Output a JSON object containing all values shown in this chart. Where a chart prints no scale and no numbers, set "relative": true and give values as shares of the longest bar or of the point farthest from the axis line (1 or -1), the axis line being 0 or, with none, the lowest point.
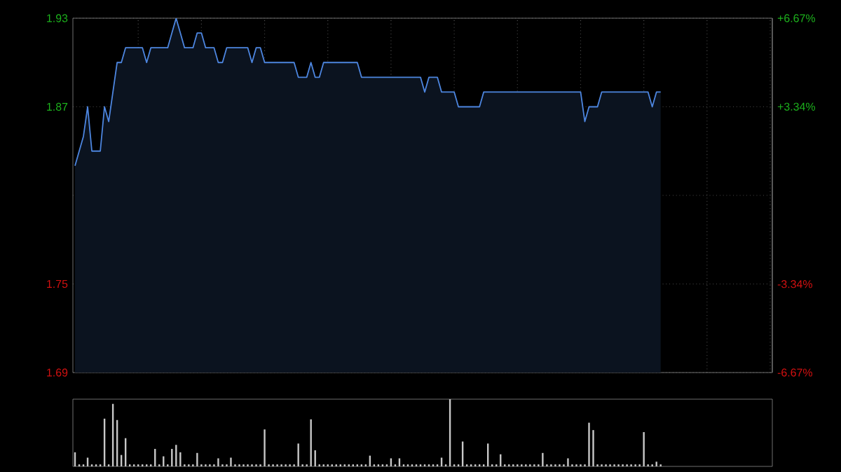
{
  "chart_data": [
    {
      "type": "area",
      "color": "#4d86e0",
      "grid": true,
      "categories": [
        null,
        null,
        null,
        null,
        null,
        null,
        null,
        null,
        null,
        null,
        null,
        null,
        null,
        null,
        null,
        null,
        null,
        null,
        null,
        null,
        null,
        null,
        null,
        null,
        null,
        null,
        null,
        null,
        null,
        null,
        null,
        null,
        null,
        null,
        null,
        null,
        null,
        null,
        null,
        null,
        null,
        null,
        null,
        null,
        null,
        null,
        null,
        null,
        null,
        null,
        null,
        null,
        null,
        null,
        null,
        null,
        null,
        null,
        null,
        null,
        null,
        null,
        null,
        null,
        null,
        null,
        null,
        null,
        null,
        null,
        null,
        null,
        null,
        null,
        null,
        null,
        null,
        null,
        null,
        null,
        null,
        null,
        null,
        null,
        null,
        null,
        null,
        null,
        null,
        null,
        null,
        null,
        null,
        null,
        null,
        null,
        null,
        null,
        null,
        null,
        null,
        null,
        null,
        null,
        null,
        null,
        null,
        null,
        null,
        null,
        null,
        null,
        null,
        null,
        null,
        null,
        null,
        null,
        null,
        null,
        null,
        null,
        null,
        null,
        null,
        null,
        null,
        null,
        null,
        null,
        null,
        null,
        null,
        null,
        null,
        null,
        null,
        null,
        null,
        null,
        null,
        null,
        null,
        null,
        null,
        null,
        null,
        null,
        null,
        null,
        null,
        null,
        null,
        null,
        null,
        null,
        null,
        null,
        null,
        null,
        null,
        null,
        null,
        null,
        null,
        null
      ],
      "values": [
        1.83,
        1.84,
        1.85,
        1.87,
        1.84,
        1.84,
        1.84,
        1.87,
        1.86,
        1.88,
        1.9,
        1.9,
        1.91,
        1.91,
        1.91,
        1.91,
        1.91,
        1.9,
        1.91,
        1.91,
        1.91,
        1.91,
        1.91,
        1.92,
        1.93,
        1.92,
        1.91,
        1.91,
        1.91,
        1.92,
        1.92,
        1.91,
        1.91,
        1.91,
        1.9,
        1.9,
        1.91,
        1.91,
        1.91,
        1.91,
        1.91,
        1.91,
        1.9,
        1.91,
        1.91,
        1.9,
        1.9,
        1.9,
        1.9,
        1.9,
        1.9,
        1.9,
        1.9,
        1.89,
        1.89,
        1.89,
        1.9,
        1.89,
        1.89,
        1.9,
        1.9,
        1.9,
        1.9,
        1.9,
        1.9,
        1.9,
        1.9,
        1.9,
        1.89,
        1.89,
        1.89,
        1.89,
        1.89,
        1.89,
        1.89,
        1.89,
        1.89,
        1.89,
        1.89,
        1.89,
        1.89,
        1.89,
        1.89,
        1.88,
        1.89,
        1.89,
        1.89,
        1.88,
        1.88,
        1.88,
        1.88,
        1.87,
        1.87,
        1.87,
        1.87,
        1.87,
        1.87,
        1.88,
        1.88,
        1.88,
        1.88,
        1.88,
        1.88,
        1.88,
        1.88,
        1.88,
        1.88,
        1.88,
        1.88,
        1.88,
        1.88,
        1.88,
        1.88,
        1.88,
        1.88,
        1.88,
        1.88,
        1.88,
        1.88,
        1.88,
        1.88,
        1.86,
        1.87,
        1.87,
        1.87,
        1.88,
        1.88,
        1.88,
        1.88,
        1.88,
        1.88,
        1.88,
        1.88,
        1.88,
        1.88,
        1.88,
        1.88,
        1.87,
        1.88,
        1.88,
        null,
        null,
        null,
        null,
        null,
        null,
        null,
        null,
        null,
        null,
        null,
        null,
        null,
        null,
        null,
        null,
        null,
        null,
        null,
        null,
        null,
        null,
        null,
        null,
        null,
        null
      ],
      "ylim": [
        1.69,
        1.93
      ],
      "yticks": [
        1.69,
        1.75,
        {
          "value": 1.81,
          "label": null
        },
        1.87,
        1.93
      ],
      "y2lim": [
        -6.67,
        6.67
      ],
      "y2ticks": [
        {
          "value": -6.67,
          "label": "-6.67%"
        },
        {
          "value": -3.34,
          "label": "-3.34%"
        },
        {
          "value": 3.34,
          "label": "+3.34%"
        },
        {
          "value": 6.67,
          "label": "+6.67%"
        }
      ]
    },
    {
      "type": "bar",
      "color": "#c8c8c8",
      "relative": true,
      "categories": [
        null,
        null,
        null,
        null,
        null,
        null,
        null,
        null,
        null,
        null,
        null,
        null,
        null,
        null,
        null,
        null,
        null,
        null,
        null,
        null,
        null,
        null,
        null,
        null,
        null,
        null,
        null,
        null,
        null,
        null,
        null,
        null,
        null,
        null,
        null,
        null,
        null,
        null,
        null,
        null,
        null,
        null,
        null,
        null,
        null,
        null,
        null,
        null,
        null,
        null,
        null,
        null,
        null,
        null,
        null,
        null,
        null,
        null,
        null,
        null,
        null,
        null,
        null,
        null,
        null,
        null,
        null,
        null,
        null,
        null,
        null,
        null,
        null,
        null,
        null,
        null,
        null,
        null,
        null,
        null,
        null,
        null,
        null,
        null,
        null,
        null,
        null,
        null,
        null,
        null,
        null,
        null,
        null,
        null,
        null,
        null,
        null,
        null,
        null,
        null,
        null,
        null,
        null,
        null,
        null,
        null,
        null,
        null,
        null,
        null,
        null,
        null,
        null,
        null,
        null,
        null,
        null,
        null,
        null,
        null,
        null,
        null,
        null,
        null,
        null,
        null,
        null,
        null,
        null,
        null,
        null,
        null,
        null,
        null,
        null,
        null,
        null,
        null,
        null,
        null,
        null,
        null,
        null,
        null,
        null,
        null,
        null,
        null,
        null,
        null,
        null,
        null,
        null,
        null,
        null,
        null,
        null,
        null,
        null,
        null,
        null,
        null,
        null,
        null,
        null,
        null
      ],
      "values": [
        0.21,
        0.03,
        0.03,
        0.13,
        0.03,
        0.03,
        0.03,
        0.71,
        0.03,
        0.93,
        0.69,
        0.17,
        0.42,
        0.03,
        0.03,
        0.03,
        0.03,
        0.03,
        0.03,
        0.26,
        0.03,
        0.15,
        0.03,
        0.26,
        0.32,
        0.21,
        0.03,
        0.03,
        0.03,
        0.2,
        0.03,
        0.03,
        0.03,
        0.03,
        0.12,
        0.03,
        0.03,
        0.13,
        0.03,
        0.03,
        0.03,
        0.03,
        0.03,
        0.03,
        0.03,
        0.55,
        0.03,
        0.03,
        0.03,
        0.03,
        0.03,
        0.03,
        0.03,
        0.34,
        0.03,
        0.03,
        0.7,
        0.24,
        0.03,
        0.03,
        0.03,
        0.03,
        0.03,
        0.03,
        0.03,
        0.03,
        0.03,
        0.03,
        0.03,
        0.03,
        0.16,
        0.03,
        0.03,
        0.03,
        0.03,
        0.12,
        0.03,
        0.12,
        0.03,
        0.03,
        0.03,
        0.03,
        0.03,
        0.03,
        0.03,
        0.03,
        0.03,
        0.13,
        0.03,
        1.0,
        0.03,
        0.03,
        0.37,
        0.03,
        0.03,
        0.03,
        0.03,
        0.03,
        0.34,
        0.03,
        0.03,
        0.18,
        0.03,
        0.03,
        0.03,
        0.03,
        0.03,
        0.03,
        0.03,
        0.03,
        0.03,
        0.2,
        0.03,
        0.03,
        0.03,
        0.03,
        0.03,
        0.12,
        0.03,
        0.03,
        0.03,
        0.03,
        0.65,
        0.54,
        0.03,
        0.03,
        0.03,
        0.03,
        0.03,
        0.03,
        0.03,
        0.03,
        0.03,
        0.03,
        0.03,
        0.51,
        0.03,
        0.03,
        0.07,
        0.03,
        null,
        null,
        null,
        null,
        null,
        null,
        null,
        null,
        null,
        null,
        null,
        null,
        null,
        null,
        null,
        null,
        null,
        null,
        null,
        null,
        null,
        null,
        null,
        null,
        null,
        null
      ]
    }
  ]
}
